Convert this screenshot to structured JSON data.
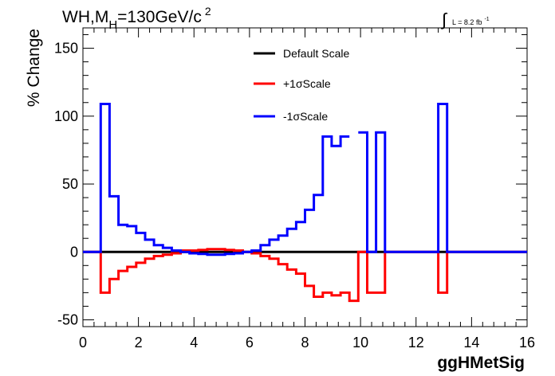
{
  "chart_data": {
    "type": "line",
    "title_main": "WH,M",
    "title_sub": "H",
    "title_rest": "=130GeV/c",
    "title_sup": "2",
    "lumi_label": "L = 8.2 fb",
    "lumi_sup": "-1",
    "xlabel": "ggHMetSig",
    "ylabel": "% Change",
    "xlim": [
      0,
      16
    ],
    "ylim": [
      -55,
      165
    ],
    "xticks": [
      0,
      2,
      4,
      6,
      8,
      10,
      12,
      14,
      16
    ],
    "yticks": [
      -50,
      0,
      50,
      100,
      150
    ],
    "legend_position": "top-center",
    "step_edges": [
      0,
      0.64,
      0.96,
      1.28,
      1.6,
      1.92,
      2.24,
      2.56,
      2.88,
      3.2,
      3.52,
      3.84,
      4.16,
      4.48,
      4.8,
      5.12,
      5.44,
      5.76,
      6.08,
      6.4,
      6.72,
      7.04,
      7.36,
      7.68,
      8.0,
      8.32,
      8.64,
      8.96,
      9.28,
      9.6,
      9.92,
      10.24,
      10.56,
      10.88,
      11.2,
      11.52,
      11.84,
      12.16,
      12.48,
      12.8,
      13.12,
      13.44,
      13.76,
      14.08,
      14.4,
      14.72,
      15.04,
      15.36,
      15.68,
      16.0
    ],
    "series": [
      {
        "name": "Default Scale",
        "color": "#000000",
        "values": [
          0,
          0,
          0,
          0,
          0,
          0,
          0,
          0,
          0,
          0,
          0,
          0,
          0,
          0,
          0,
          0,
          0,
          0,
          0,
          0,
          0,
          0,
          0,
          0,
          0,
          0,
          0,
          0,
          0,
          0,
          0,
          0,
          0,
          0,
          0,
          0,
          0,
          0,
          0,
          0,
          0,
          0,
          0,
          0,
          0,
          0,
          0,
          0,
          0
        ]
      },
      {
        "name": "+1σScale",
        "color": "#ff0000",
        "values": [
          0,
          -30,
          -20,
          -14,
          -11,
          -8,
          -5,
          -3,
          -2,
          -1,
          1,
          1,
          1.5,
          2,
          2,
          1.5,
          1,
          0,
          -1,
          -3,
          -5,
          -9,
          -13,
          -16,
          -25,
          -33,
          -30,
          -32,
          -30,
          -36,
          0,
          -30,
          -30,
          0,
          0,
          0,
          0,
          0,
          0,
          -30,
          0,
          0,
          0,
          0,
          0,
          0,
          0,
          0,
          0
        ]
      },
      {
        "name": "-1σScale",
        "color": "#0000ff",
        "values": [
          0,
          109,
          41,
          20,
          19,
          14,
          9,
          5,
          3,
          1,
          0,
          -1,
          -1.5,
          -2,
          -2,
          -1.5,
          -1,
          0,
          1,
          5,
          9,
          12,
          17,
          22,
          31,
          42,
          85,
          78,
          85,
          null,
          88,
          0,
          88,
          0,
          0,
          0,
          0,
          0,
          0,
          109,
          0,
          0,
          0,
          0,
          0,
          0,
          0,
          0,
          0
        ]
      }
    ]
  }
}
